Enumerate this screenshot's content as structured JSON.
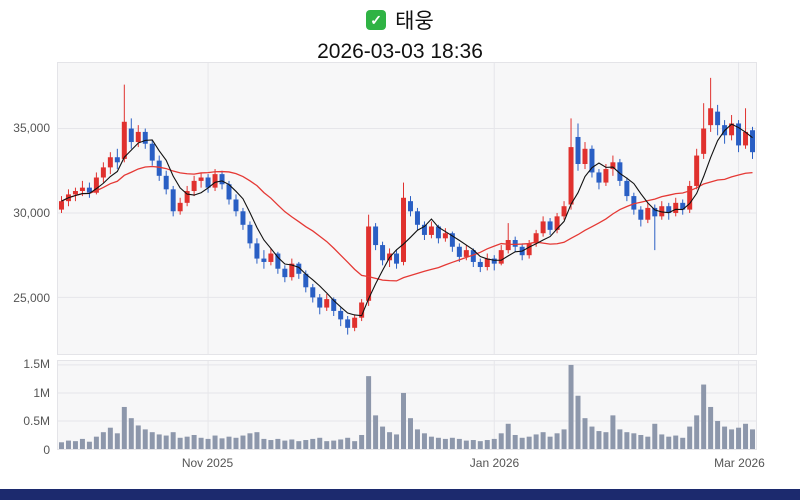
{
  "icons": {
    "checkbox_glyph": "✓",
    "checkbox_green": "#2fb344"
  },
  "colors": {
    "up": "#e0312e",
    "down": "#2a5fc4",
    "ma_short": "#111111",
    "ma_long": "#e53935",
    "volume_bar": "#8d97ab",
    "panel_bg": "#f7f7f8",
    "panel_border": "#e4e4e8",
    "grid": "#e6e6ea",
    "axis_text": "#555555",
    "navy_bar": "#1c2a6e",
    "checkbox_green": "#2fb344"
  },
  "chart_data": {
    "type": "candlestick+volume",
    "title": "태웅",
    "timestamp": "2026-03-03 18:36",
    "legend_position": "none",
    "grid": true,
    "price_ylim": [
      21650,
      38880
    ],
    "volume_ylim": [
      0,
      1.57
    ],
    "volume_unit": "millions of shares",
    "price_axis": {
      "ticks": [
        {
          "value": 35000,
          "label": "35,000"
        },
        {
          "value": 30000,
          "label": "30,000"
        },
        {
          "value": 25000,
          "label": "25,000"
        }
      ]
    },
    "volume_axis": {
      "ticks": [
        {
          "value": 1.5,
          "label": "1.5M"
        },
        {
          "value": 1.0,
          "label": "1M"
        },
        {
          "value": 0.5,
          "label": "0.5M"
        },
        {
          "value": 0,
          "label": "0"
        }
      ]
    },
    "x_axis": {
      "labels": [
        {
          "index": 21,
          "label": "Nov 2025"
        },
        {
          "index": 62,
          "label": "Jan 2026"
        },
        {
          "index": 97,
          "label": "Mar 2026"
        }
      ]
    },
    "moving_averages": [
      {
        "name": "short",
        "window": 5,
        "color_key": "ma_short"
      },
      {
        "name": "long",
        "window": 20,
        "color_key": "ma_long"
      }
    ],
    "candles_format": [
      "open",
      "high",
      "low",
      "close",
      "volume_millions"
    ],
    "candles": [
      [
        30200,
        31000,
        30000,
        30700,
        0.12
      ],
      [
        30700,
        31400,
        30400,
        31100,
        0.15
      ],
      [
        31100,
        31500,
        30700,
        31300,
        0.14
      ],
      [
        31300,
        31900,
        31000,
        31500,
        0.18
      ],
      [
        31500,
        31800,
        30900,
        31200,
        0.13
      ],
      [
        31200,
        32400,
        31100,
        32100,
        0.22
      ],
      [
        32100,
        33000,
        31800,
        32700,
        0.3
      ],
      [
        32700,
        33600,
        32300,
        33300,
        0.38
      ],
      [
        33300,
        33800,
        32600,
        33000,
        0.28
      ],
      [
        33200,
        37600,
        33000,
        35400,
        0.75
      ],
      [
        35000,
        35600,
        33800,
        34200,
        0.55
      ],
      [
        34200,
        35200,
        33900,
        34800,
        0.42
      ],
      [
        34800,
        35000,
        33800,
        34100,
        0.35
      ],
      [
        34100,
        34300,
        32800,
        33100,
        0.3
      ],
      [
        33100,
        33400,
        31900,
        32200,
        0.26
      ],
      [
        32200,
        32500,
        31100,
        31400,
        0.24
      ],
      [
        31400,
        31600,
        29800,
        30100,
        0.3
      ],
      [
        30100,
        30900,
        29900,
        30600,
        0.2
      ],
      [
        30600,
        31600,
        30400,
        31300,
        0.22
      ],
      [
        31300,
        32200,
        31000,
        31900,
        0.25
      ],
      [
        31900,
        32400,
        31500,
        32100,
        0.2
      ],
      [
        32100,
        32300,
        31200,
        31500,
        0.18
      ],
      [
        31500,
        32600,
        31300,
        32300,
        0.24
      ],
      [
        32300,
        32500,
        31400,
        31700,
        0.19
      ],
      [
        31700,
        31900,
        30500,
        30800,
        0.22
      ],
      [
        30800,
        31100,
        29800,
        30100,
        0.2
      ],
      [
        30100,
        30300,
        29000,
        29300,
        0.24
      ],
      [
        29300,
        29500,
        27900,
        28200,
        0.28
      ],
      [
        28200,
        28500,
        27000,
        27300,
        0.3
      ],
      [
        27300,
        27800,
        26700,
        27100,
        0.18
      ],
      [
        27100,
        27900,
        26900,
        27600,
        0.16
      ],
      [
        27600,
        27700,
        26400,
        26700,
        0.18
      ],
      [
        26700,
        26900,
        25900,
        26200,
        0.15
      ],
      [
        26200,
        27300,
        26000,
        27000,
        0.17
      ],
      [
        27000,
        27100,
        26100,
        26400,
        0.14
      ],
      [
        26400,
        26600,
        25300,
        25600,
        0.16
      ],
      [
        25600,
        25800,
        24700,
        25000,
        0.18
      ],
      [
        25000,
        25200,
        24000,
        24400,
        0.2
      ],
      [
        24400,
        25200,
        24200,
        24900,
        0.14
      ],
      [
        24900,
        25000,
        23900,
        24200,
        0.15
      ],
      [
        24200,
        24400,
        23300,
        23700,
        0.17
      ],
      [
        23700,
        23900,
        22800,
        23200,
        0.2
      ],
      [
        23200,
        24000,
        23000,
        23800,
        0.14
      ],
      [
        23800,
        24900,
        23600,
        24700,
        0.25
      ],
      [
        24800,
        29900,
        24500,
        29200,
        1.3
      ],
      [
        29200,
        29400,
        27800,
        28100,
        0.6
      ],
      [
        28100,
        28300,
        26900,
        27200,
        0.4
      ],
      [
        27200,
        27900,
        26800,
        27600,
        0.3
      ],
      [
        27600,
        27800,
        26700,
        27000,
        0.26
      ],
      [
        27100,
        31800,
        26900,
        30900,
        1.0
      ],
      [
        30700,
        31000,
        29800,
        30100,
        0.55
      ],
      [
        30100,
        30300,
        29000,
        29300,
        0.35
      ],
      [
        29300,
        29500,
        28400,
        28700,
        0.28
      ],
      [
        28700,
        29500,
        28500,
        29200,
        0.22
      ],
      [
        29200,
        29300,
        28200,
        28500,
        0.2
      ],
      [
        28500,
        29100,
        28300,
        28800,
        0.18
      ],
      [
        28800,
        28900,
        27700,
        28000,
        0.2
      ],
      [
        28000,
        28200,
        27100,
        27400,
        0.18
      ],
      [
        27400,
        28100,
        27200,
        27800,
        0.15
      ],
      [
        27800,
        27900,
        26800,
        27100,
        0.16
      ],
      [
        27100,
        27300,
        26500,
        26800,
        0.14
      ],
      [
        26800,
        27600,
        26600,
        27300,
        0.16
      ],
      [
        27300,
        27500,
        26600,
        27000,
        0.18
      ],
      [
        27000,
        28100,
        26900,
        27800,
        0.28
      ],
      [
        27800,
        29400,
        27600,
        28400,
        0.45
      ],
      [
        28400,
        28600,
        27700,
        28000,
        0.25
      ],
      [
        28000,
        28200,
        27200,
        27500,
        0.2
      ],
      [
        27500,
        28400,
        27300,
        28200,
        0.22
      ],
      [
        28200,
        29000,
        28000,
        28800,
        0.26
      ],
      [
        28800,
        29800,
        28600,
        29500,
        0.3
      ],
      [
        29500,
        29700,
        28700,
        29000,
        0.22
      ],
      [
        29000,
        30000,
        28800,
        29800,
        0.28
      ],
      [
        29800,
        30700,
        29600,
        30400,
        0.35
      ],
      [
        30500,
        35600,
        30200,
        33900,
        1.5
      ],
      [
        34500,
        35300,
        32500,
        32900,
        0.95
      ],
      [
        32900,
        34200,
        32600,
        33800,
        0.55
      ],
      [
        33800,
        34000,
        32100,
        32400,
        0.4
      ],
      [
        32400,
        32600,
        31400,
        31800,
        0.32
      ],
      [
        31800,
        32900,
        31600,
        32600,
        0.3
      ],
      [
        32600,
        33400,
        32200,
        33000,
        0.6
      ],
      [
        33000,
        33200,
        31600,
        31900,
        0.35
      ],
      [
        31900,
        32100,
        30700,
        31000,
        0.3
      ],
      [
        31000,
        31200,
        29900,
        30200,
        0.28
      ],
      [
        30200,
        30400,
        29200,
        29600,
        0.25
      ],
      [
        29600,
        30600,
        29400,
        30300,
        0.22
      ],
      [
        30300,
        30500,
        27800,
        29800,
        0.45
      ],
      [
        29800,
        30700,
        29600,
        30400,
        0.26
      ],
      [
        30400,
        30600,
        29600,
        30000,
        0.22
      ],
      [
        30000,
        30900,
        29800,
        30600,
        0.24
      ],
      [
        30600,
        30800,
        29900,
        30200,
        0.2
      ],
      [
        30200,
        31900,
        30000,
        31600,
        0.4
      ],
      [
        31600,
        33800,
        31400,
        33400,
        0.6
      ],
      [
        33500,
        36500,
        33200,
        35000,
        1.15
      ],
      [
        35200,
        38000,
        34800,
        36200,
        0.75
      ],
      [
        36000,
        36400,
        34600,
        35200,
        0.5
      ],
      [
        35200,
        35500,
        34100,
        34600,
        0.4
      ],
      [
        34600,
        35800,
        34300,
        35300,
        0.35
      ],
      [
        35300,
        35500,
        33600,
        34000,
        0.38
      ],
      [
        34000,
        36200,
        33800,
        34800,
        0.45
      ],
      [
        34900,
        35100,
        33200,
        33600,
        0.35
      ]
    ]
  }
}
